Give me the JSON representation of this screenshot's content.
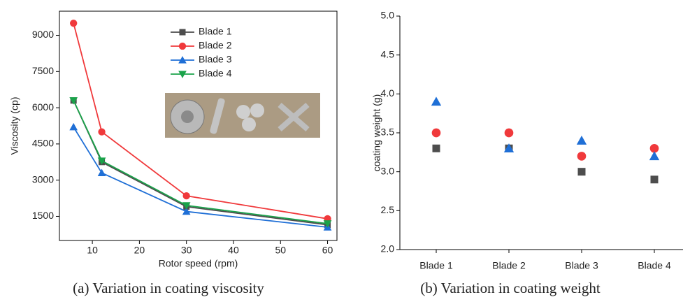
{
  "chart_data": [
    {
      "type": "line",
      "caption": "(a) Variation in coating viscosity",
      "x_label": "Rotor speed (rpm)",
      "y_label": "Viscosity (cp)",
      "x": [
        6,
        12,
        30,
        60
      ],
      "xlim": [
        3,
        62
      ],
      "xticks": [
        10,
        20,
        30,
        40,
        50,
        60
      ],
      "ylim": [
        500,
        10000
      ],
      "yticks": [
        1500,
        3000,
        4500,
        6000,
        7500,
        9000
      ],
      "legend": "upper-right",
      "series": [
        {
          "name": "Blade 1",
          "color": "#4d4d4d",
          "marker": "square",
          "values": [
            6300,
            3750,
            1900,
            1150
          ]
        },
        {
          "name": "Blade 2",
          "color": "#f0393b",
          "marker": "circle",
          "values": [
            9500,
            5000,
            2350,
            1400
          ]
        },
        {
          "name": "Blade 3",
          "color": "#1f6fd6",
          "marker": "triangle",
          "values": [
            5200,
            3300,
            1700,
            1050
          ]
        },
        {
          "name": "Blade 4",
          "color": "#1aa34a",
          "marker": "triangle-down",
          "values": [
            6300,
            3800,
            1950,
            1200
          ]
        }
      ]
    },
    {
      "type": "scatter",
      "caption": "(b) Variation in coating weight",
      "y_label": "coating weight (g)",
      "categories": [
        "Blade 1",
        "Blade 2",
        "Blade 3",
        "Blade 4"
      ],
      "ylim": [
        2,
        5
      ],
      "yticks": [
        {
          "value": 2,
          "label": "2.0"
        },
        {
          "value": 2.5,
          "label": "2.5"
        },
        {
          "value": 3,
          "label": "3.0"
        },
        {
          "value": 3.5,
          "label": "3.5"
        },
        {
          "value": 4,
          "label": "4.0"
        },
        {
          "value": 4.5,
          "label": "4.5"
        },
        {
          "value": 5,
          "label": "5.0"
        }
      ],
      "series": [
        {
          "color": "#4d4d4d",
          "marker": "square",
          "values": [
            3.3,
            3.3,
            3.0,
            2.9
          ]
        },
        {
          "color": "#f0393b",
          "marker": "circle",
          "values": [
            3.5,
            3.5,
            3.2,
            3.3
          ]
        },
        {
          "color": "#1f6fd6",
          "marker": "triangle",
          "values": [
            3.9,
            3.3,
            3.4,
            3.2
          ]
        }
      ]
    }
  ]
}
